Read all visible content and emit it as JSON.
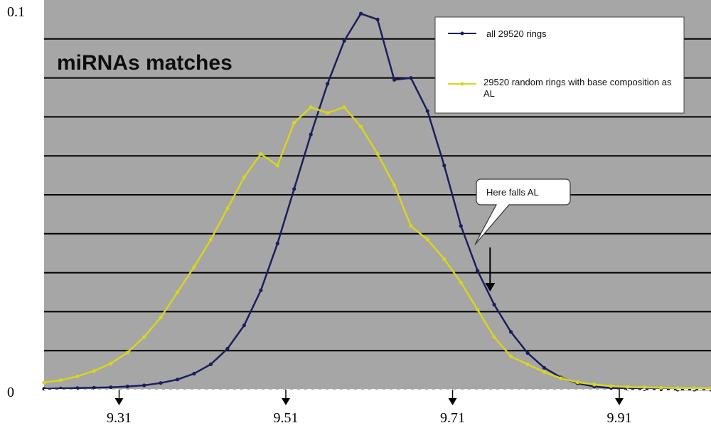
{
  "chart_data": {
    "type": "line",
    "title": "miRNAs matches",
    "xlabel": "",
    "ylabel": "",
    "ylim": [
      0,
      0.1
    ],
    "y_ticks": [
      "0",
      "0.1"
    ],
    "xlim": [
      9.22,
      10.02
    ],
    "x_ticks": [
      9.31,
      9.51,
      9.71,
      9.91
    ],
    "x_tick_labels": [
      "9.31",
      "9.51",
      "9.71",
      "9.91"
    ],
    "grid": true,
    "legend_placement": "top-right",
    "annotation": "Here falls AL",
    "annotation_x": 9.755,
    "series": [
      {
        "name": "all 29520 rings",
        "color": "#1a1f5c",
        "x": [
          9.22,
          9.24,
          9.26,
          9.28,
          9.3,
          9.32,
          9.34,
          9.36,
          9.38,
          9.4,
          9.42,
          9.44,
          9.46,
          9.48,
          9.5,
          9.52,
          9.54,
          9.56,
          9.58,
          9.6,
          9.62,
          9.64,
          9.66,
          9.68,
          9.7,
          9.72,
          9.74,
          9.76,
          9.78,
          9.8,
          9.82,
          9.84,
          9.86,
          9.88,
          9.9,
          9.92,
          9.94,
          9.96,
          9.98,
          10.0,
          10.02
        ],
        "values": [
          0.0002,
          0.0003,
          0.0004,
          0.0005,
          0.0006,
          0.0008,
          0.0011,
          0.0017,
          0.0026,
          0.0041,
          0.0065,
          0.0105,
          0.0165,
          0.0255,
          0.0375,
          0.0515,
          0.0655,
          0.0785,
          0.0895,
          0.0965,
          0.095,
          0.0795,
          0.08,
          0.0715,
          0.0575,
          0.042,
          0.0305,
          0.0218,
          0.0148,
          0.0094,
          0.0056,
          0.0031,
          0.0016,
          0.0008,
          0.0004,
          0.0002,
          0.0001,
          0.0001,
          0.0,
          0.0,
          0.0
        ]
      },
      {
        "name": "29520 random rings with base composition as AL",
        "color": "#d6d61e",
        "x": [
          9.22,
          9.24,
          9.26,
          9.28,
          9.3,
          9.32,
          9.34,
          9.36,
          9.38,
          9.4,
          9.42,
          9.44,
          9.46,
          9.48,
          9.5,
          9.52,
          9.54,
          9.56,
          9.58,
          9.6,
          9.62,
          9.64,
          9.66,
          9.68,
          9.7,
          9.72,
          9.74,
          9.76,
          9.78,
          9.8,
          9.82,
          9.84,
          9.86,
          9.88,
          9.9,
          9.92,
          9.94,
          9.96,
          9.98,
          10.0,
          10.02
        ],
        "values": [
          0.0018,
          0.0024,
          0.0034,
          0.0048,
          0.0067,
          0.0095,
          0.0135,
          0.0185,
          0.025,
          0.0315,
          0.0385,
          0.0465,
          0.0545,
          0.0605,
          0.0575,
          0.0685,
          0.0725,
          0.071,
          0.0725,
          0.0675,
          0.0605,
          0.0525,
          0.042,
          0.0385,
          0.0335,
          0.0275,
          0.0205,
          0.0135,
          0.0085,
          0.0065,
          0.0045,
          0.0029,
          0.0019,
          0.0013,
          0.0009,
          0.0007,
          0.0006,
          0.0005,
          0.0004,
          0.0004,
          0.0003
        ]
      }
    ]
  },
  "colors": {
    "plot_background": "#a6a6a6",
    "grid_lines": "#000000",
    "legend_background": "#ffffff"
  }
}
